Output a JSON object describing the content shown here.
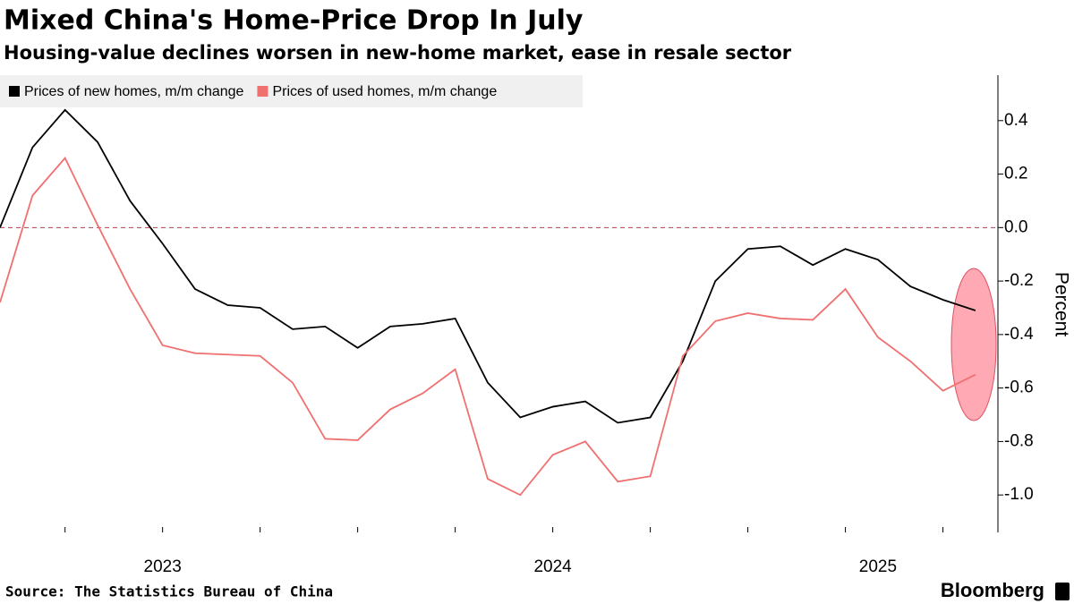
{
  "chart_data": {
    "type": "line",
    "title": "Mixed China's Home-Price Drop In July",
    "subtitle": "Housing-value declines worsen in new-home market, ease in resale sector",
    "y_axis_label": "Percent",
    "source": "Source: The Statistics Bureau of China",
    "brand": "Bloomberg",
    "categories": [
      null,
      null,
      null,
      null,
      null,
      "2023",
      null,
      null,
      null,
      null,
      null,
      null,
      null,
      null,
      null,
      null,
      null,
      "2024",
      null,
      null,
      null,
      null,
      null,
      null,
      null,
      null,
      null,
      "2025",
      null,
      null,
      null
    ],
    "series": [
      {
        "name": "Prices of new homes, m/m change",
        "color": "#000000",
        "values": [
          0.0,
          0.3,
          0.44,
          0.32,
          0.1,
          -0.06,
          -0.23,
          -0.29,
          -0.3,
          -0.38,
          -0.37,
          -0.45,
          -0.37,
          -0.36,
          -0.34,
          -0.58,
          -0.71,
          -0.67,
          -0.65,
          -0.73,
          -0.71,
          -0.5,
          -0.2,
          -0.08,
          -0.07,
          -0.14,
          -0.08,
          -0.12,
          -0.22,
          -0.27,
          -0.31
        ]
      },
      {
        "name": "Prices of used homes, m/m change",
        "color": "#f07070",
        "values": [
          -0.28,
          0.12,
          0.26,
          0.01,
          -0.23,
          -0.44,
          -0.47,
          -0.475,
          -0.48,
          -0.58,
          -0.79,
          -0.795,
          -0.68,
          -0.62,
          -0.53,
          -0.94,
          -1.0,
          -0.85,
          -0.8,
          -0.95,
          -0.93,
          -0.48,
          -0.35,
          -0.32,
          -0.34,
          -0.345,
          -0.23,
          -0.41,
          -0.5,
          -0.61,
          -0.55
        ]
      }
    ],
    "ylim": [
      -1.14,
      0.57
    ],
    "yticks": [
      0.4,
      0.2,
      {
        "value": 0,
        "label": "0.0"
      },
      -0.2,
      -0.4,
      -0.6,
      -0.8,
      {
        "value": -1,
        "label": "-1.0"
      }
    ],
    "zero_line": true
  }
}
